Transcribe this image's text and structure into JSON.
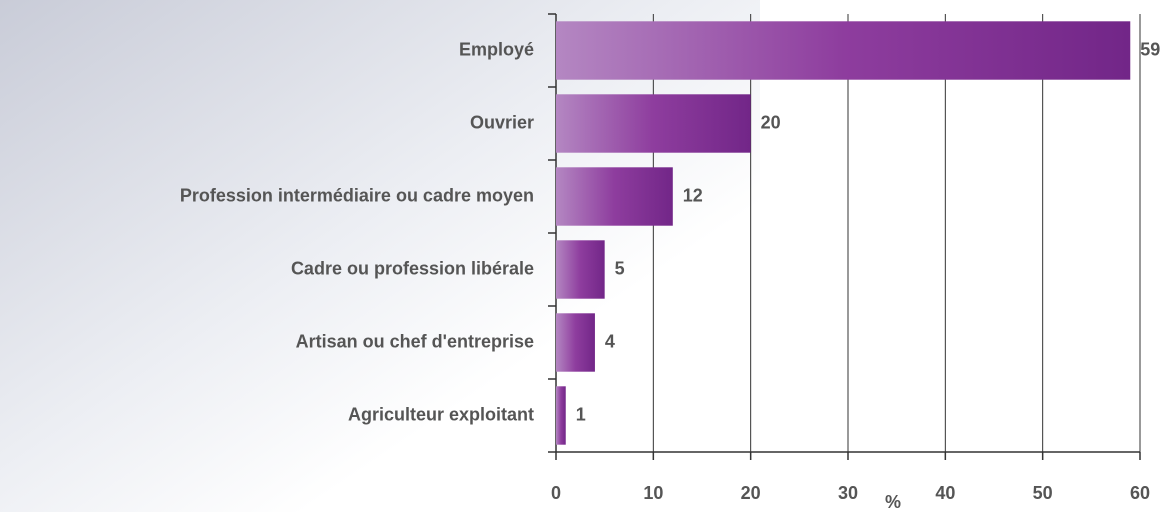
{
  "chart_data": {
    "type": "bar",
    "orientation": "horizontal",
    "categories": [
      "Employé",
      "Ouvrier",
      "Profession intermédiaire ou cadre moyen",
      "Cadre ou profession libérale",
      "Artisan ou chef d'entreprise",
      "Agriculteur exploitant"
    ],
    "values": [
      59,
      20,
      12,
      5,
      4,
      1
    ],
    "color": "#7b2a8c",
    "xlabel": "%",
    "xlim": [
      0,
      60
    ],
    "xticks": [
      0,
      10,
      20,
      30,
      40,
      50,
      60
    ],
    "grid": true
  }
}
